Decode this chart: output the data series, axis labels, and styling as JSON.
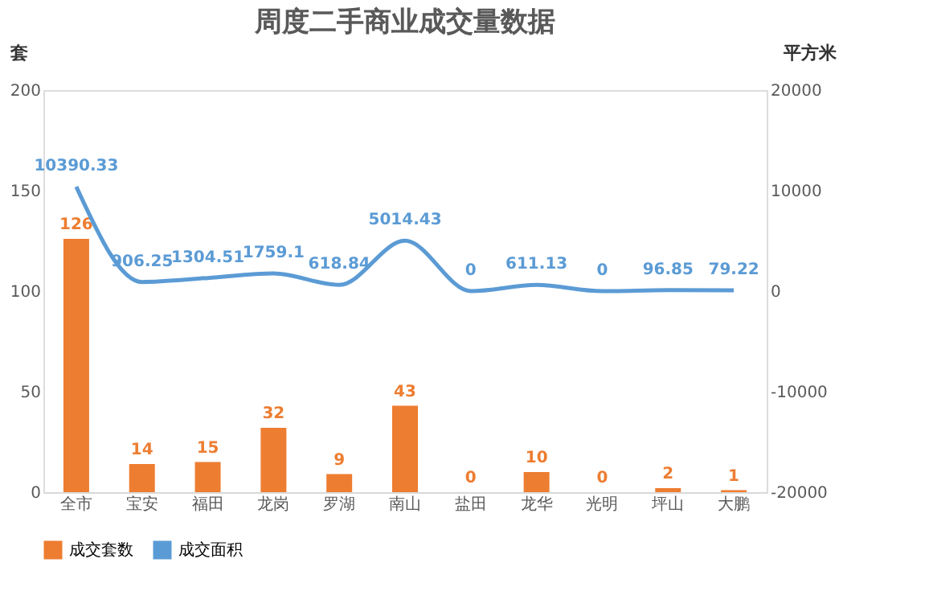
{
  "chart_data": {
    "type": "bar",
    "title": "周度二手商业成交量数据",
    "ylabel": "套",
    "y2label": "平方米",
    "categories": [
      "全市",
      "宝安",
      "福田",
      "龙岗",
      "罗湖",
      "南山",
      "盐田",
      "龙华",
      "光明",
      "坪山",
      "大鹏"
    ],
    "series": [
      {
        "name": "成交套数",
        "color": "#ed7d31",
        "values": [
          126,
          14,
          15,
          32,
          9,
          43,
          0,
          10,
          0,
          2,
          1
        ]
      },
      {
        "name": "成交面积",
        "type": "line",
        "axis": "y2",
        "color": "#5b9bd5",
        "values": [
          10390.33,
          906.25,
          1304.51,
          1759.1,
          618.84,
          5014.43,
          0,
          611.13,
          0,
          96.85,
          79.22
        ]
      }
    ],
    "ylim": [
      0,
      200
    ],
    "yticks": [
      0,
      50,
      100,
      150,
      200
    ],
    "y2lim": [
      -20000,
      20000
    ],
    "y2ticks": [
      -20000,
      -10000,
      0,
      10000,
      20000
    ],
    "data_labels": true,
    "legend": "bottom",
    "grid": false
  }
}
